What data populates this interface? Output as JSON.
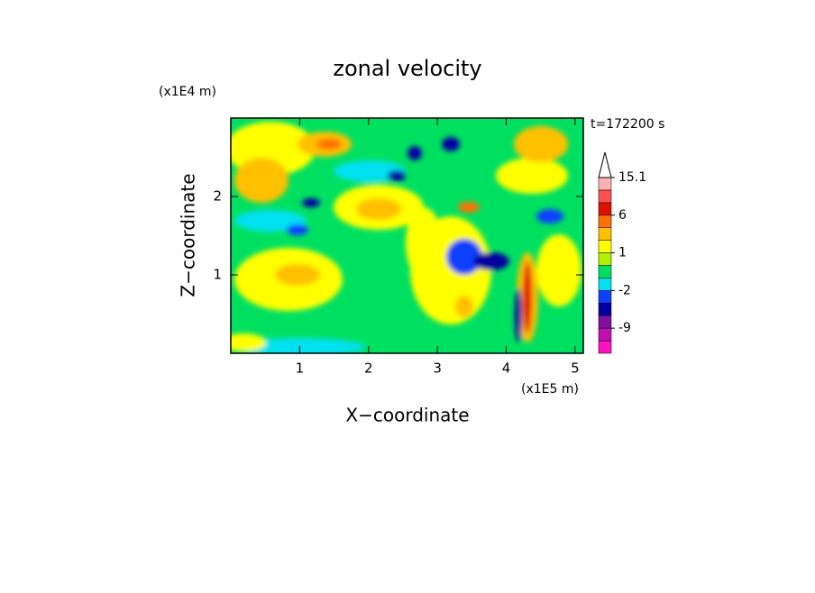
{
  "chart_data": {
    "type": "contour",
    "title": "zonal velocity",
    "xlabel": "X−coordinate",
    "ylabel": "Z−coordinate",
    "xunit": "(x1E5 m)",
    "yunit": "(x1E4 m)",
    "annotation": "t=172200 s",
    "xlim": [
      0,
      5.12
    ],
    "ylim": [
      0,
      3
    ],
    "xticks": [
      1,
      2,
      3,
      4,
      5
    ],
    "yticks": [
      1,
      2
    ],
    "colorbar": {
      "levels": [
        -15,
        -12,
        -9,
        -6,
        -4,
        -2,
        -1,
        0,
        1,
        2,
        4,
        6,
        9,
        12,
        15.1
      ],
      "colors": [
        "#ff10c0",
        "#c010b0",
        "#8010a0",
        "#0000a0",
        "#1040ff",
        "#00e0f0",
        "#00e060",
        "#b0f000",
        "#ffff00",
        "#ffc000",
        "#ff7000",
        "#e01000",
        "#ff5050",
        "#ffb0b0"
      ],
      "ticks": [
        -9,
        -2,
        1,
        6,
        15.1
      ]
    }
  }
}
